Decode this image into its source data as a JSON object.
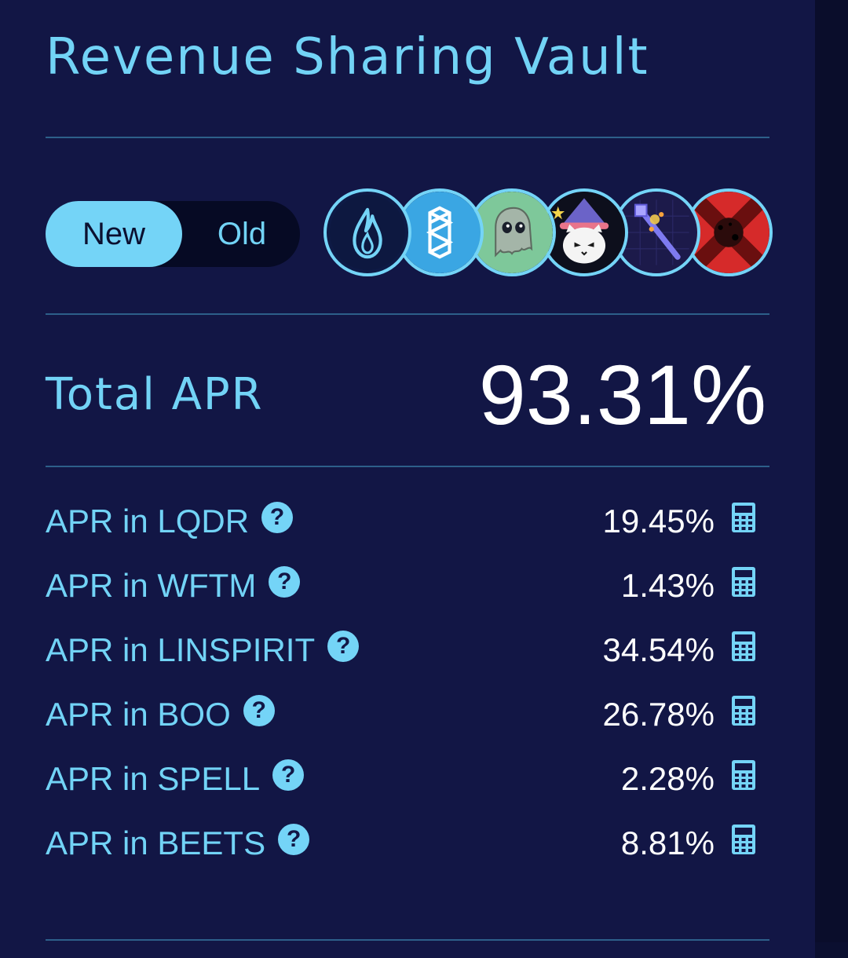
{
  "title": "Revenue Sharing Vault",
  "toggle": {
    "options": [
      "New",
      "Old"
    ],
    "selected": "New"
  },
  "reward_tokens": [
    {
      "name": "LQDR",
      "icon": "flame-icon"
    },
    {
      "name": "WFTM",
      "icon": "fantom-icon"
    },
    {
      "name": "LINSPIRIT",
      "icon": "ghost-icon"
    },
    {
      "name": "BOO",
      "icon": "wizard-cat-icon"
    },
    {
      "name": "SPELL",
      "icon": "magic-wand-icon"
    },
    {
      "name": "BEETS",
      "icon": "red-x-icon"
    }
  ],
  "total_apr": {
    "label": "Total APR",
    "value": "93.31%"
  },
  "apr_rows": [
    {
      "label": "APR in LQDR",
      "value": "19.45%"
    },
    {
      "label": "APR in WFTM",
      "value": "1.43%"
    },
    {
      "label": "APR in LINSPIRIT",
      "value": "34.54%"
    },
    {
      "label": "APR in BOO",
      "value": "26.78%"
    },
    {
      "label": "APR in SPELL",
      "value": "2.28%"
    },
    {
      "label": "APR in BEETS",
      "value": "8.81%"
    }
  ],
  "help_glyph": "?",
  "colors": {
    "background": "#121645",
    "accent": "#72d3f6",
    "value_text": "#ffffff",
    "divider": "#2d5f8a"
  }
}
